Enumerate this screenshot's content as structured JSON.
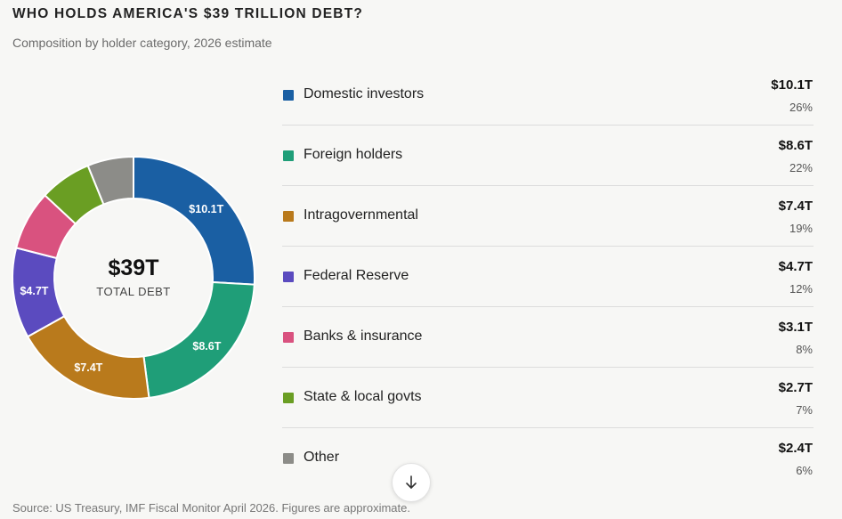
{
  "header": {
    "title": "WHO HOLDS AMERICA'S $39 TRILLION DEBT?",
    "subtitle": "Composition by holder category, 2026 estimate"
  },
  "center": {
    "value": "$39T",
    "label": "TOTAL DEBT"
  },
  "footer": {
    "source": "Source: US Treasury, IMF Fiscal Monitor April 2026. Figures are approximate."
  },
  "scroll_button": {
    "icon": "arrow-down-icon"
  },
  "chart_data": {
    "type": "pie",
    "title": "WHO HOLDS AMERICA'S $39 TRILLION DEBT?",
    "subtitle": "Composition by holder category, 2026 estimate",
    "total": 39,
    "total_label": "$39T",
    "unit": "trillion USD",
    "style": "donut",
    "legend_placement": "right",
    "slices": [
      {
        "label": "Domestic investors",
        "value": 10.1,
        "value_label": "$10.1T",
        "percent": "26%",
        "color": "#1a5fa3",
        "show_in_chart": true
      },
      {
        "label": "Foreign holders",
        "value": 8.6,
        "value_label": "$8.6T",
        "percent": "22%",
        "color": "#1f9e78",
        "show_in_chart": true
      },
      {
        "label": "Intragovernmental",
        "value": 7.4,
        "value_label": "$7.4T",
        "percent": "19%",
        "color": "#b97a1c",
        "show_in_chart": true
      },
      {
        "label": "Federal Reserve",
        "value": 4.7,
        "value_label": "$4.7T",
        "percent": "12%",
        "color": "#5b4bbf",
        "show_in_chart": true
      },
      {
        "label": "Banks & insurance",
        "value": 3.1,
        "value_label": "$3.1T",
        "percent": "8%",
        "color": "#d9527f",
        "show_in_chart": false
      },
      {
        "label": "State & local govts",
        "value": 2.7,
        "value_label": "$2.7T",
        "percent": "7%",
        "color": "#6a9e23",
        "show_in_chart": false
      },
      {
        "label": "Other",
        "value": 2.4,
        "value_label": "$2.4T",
        "percent": "6%",
        "color": "#8c8c88",
        "show_in_chart": false
      }
    ]
  }
}
